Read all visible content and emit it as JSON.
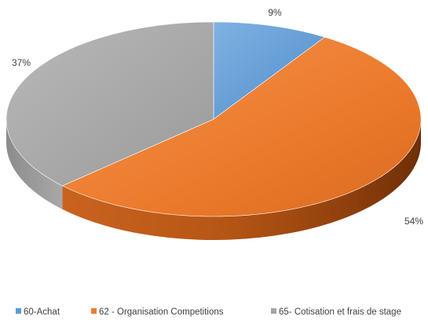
{
  "chart_data": {
    "type": "pie",
    "style": "3d",
    "categories": [
      "60-Achat",
      "62 - Organisation Competitions",
      "65- Cotisation et frais de stage"
    ],
    "values": [
      9,
      54,
      37
    ],
    "data_labels": [
      "9%",
      "54%",
      "37%"
    ],
    "colors": [
      "#5b9bd5",
      "#ed7d31",
      "#a5a5a5"
    ],
    "legend": {
      "position": "bottom",
      "entries": [
        "60-Achat",
        "62 - Organisation Competitions",
        "65- Cotisation et frais de stage"
      ]
    },
    "title": ""
  }
}
